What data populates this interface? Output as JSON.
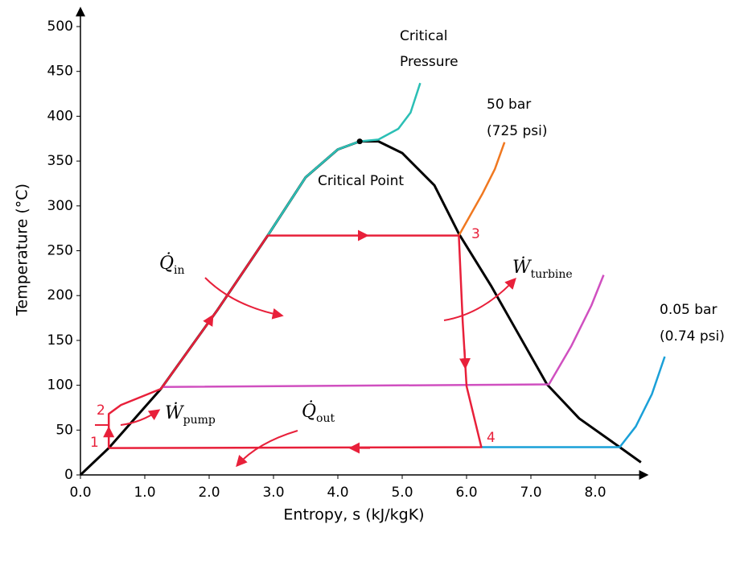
{
  "chart_data": {
    "type": "line",
    "x_label": "Entropy, s  (kJ/kgK)",
    "y_label": "Temperature (°C)",
    "xlim": [
      0,
      8.8
    ],
    "ylim": [
      0,
      520
    ],
    "xticks": [
      {
        "value": 0,
        "label": "0.0"
      },
      {
        "value": 1,
        "label": "1.0"
      },
      {
        "value": 2,
        "label": "2.0"
      },
      {
        "value": 3,
        "label": "3.0"
      },
      {
        "value": 4,
        "label": "4.0"
      },
      {
        "value": 5,
        "label": "5.0"
      },
      {
        "value": 6,
        "label": "6.0"
      },
      {
        "value": 7,
        "label": "7.0"
      },
      {
        "value": 8,
        "label": "8.0"
      }
    ],
    "yticks": [
      0,
      50,
      100,
      150,
      200,
      250,
      300,
      350,
      400,
      450,
      500
    ],
    "series": [
      {
        "color": "#000000",
        "x": [
          0,
          0.44,
          1.25,
          2.13,
          2.91,
          3.5,
          4.0,
          4.34,
          4.63,
          5.0,
          5.5,
          5.88,
          6.38,
          7.25,
          7.75,
          8.38,
          8.71
        ],
        "values": [
          0,
          30,
          96,
          184,
          267,
          332,
          363,
          372,
          372,
          359,
          323,
          269,
          211,
          101,
          63,
          31,
          14
        ]
      },
      {
        "color": "#2bbfb5",
        "x": [
          2.91,
          3.5,
          4.0,
          4.34,
          4.63,
          4.94,
          5.13,
          5.28
        ],
        "values": [
          267,
          332,
          363,
          372,
          374,
          386,
          404,
          437
        ]
      },
      {
        "color": "#f07820",
        "x": [
          5.88,
          6.25,
          6.44,
          6.59
        ],
        "values": [
          267,
          314,
          341,
          371
        ]
      },
      {
        "color": "#1aa0d8",
        "x": [
          6.23,
          8.38,
          8.63,
          8.88,
          9.08
        ],
        "values": [
          31,
          31,
          54,
          90,
          132
        ]
      },
      {
        "color": "#d050c0",
        "x": [
          1.25,
          7.28,
          7.63,
          7.94,
          8.13
        ],
        "values": [
          98,
          101,
          144,
          189,
          223
        ]
      },
      {
        "color": "#e8203a",
        "x": [
          0.44,
          0.44,
          0.63,
          1.25,
          2.13,
          2.91,
          5.88,
          5.94,
          6.0,
          6.23,
          0.44
        ],
        "values": [
          30,
          68,
          78,
          96,
          184,
          267,
          267,
          171,
          99,
          31,
          30
        ]
      }
    ],
    "critical_point": {
      "x": 4.34,
      "y": 372
    },
    "labels": [
      "Critical",
      "Pressure",
      "50 bar",
      "(725 psi)",
      "Critical Point",
      "0.05 bar",
      "(0.74 psi)",
      "1",
      "2",
      "3",
      "4"
    ],
    "symbols": [
      {
        "text": "Q̇",
        "sub": "in"
      },
      {
        "text": "Ẇ",
        "sub": "turbine"
      },
      {
        "text": "Ẇ",
        "sub": "pump"
      },
      {
        "text": "Q̇",
        "sub": "out"
      }
    ]
  }
}
